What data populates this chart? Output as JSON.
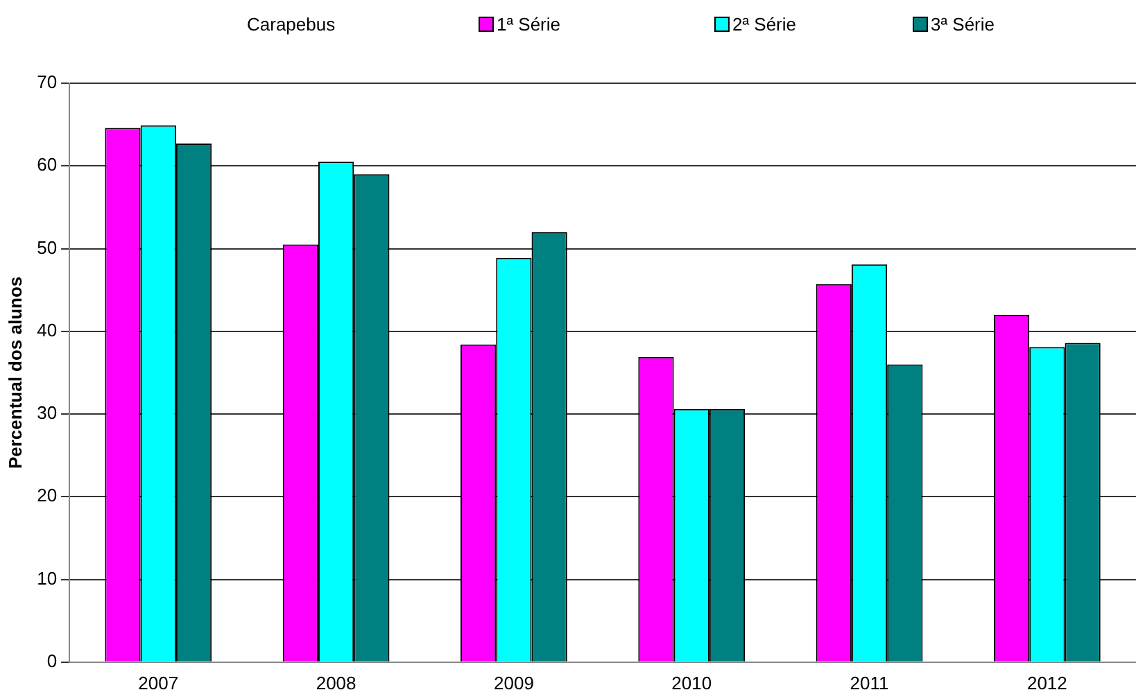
{
  "chart_data": {
    "type": "bar",
    "legend_title": "Carapebus",
    "ylabel": "Percentual dos alunos",
    "categories": [
      "2007",
      "2008",
      "2009",
      "2010",
      "2011",
      "2012"
    ],
    "series": [
      {
        "name": "1ª Série",
        "color": "#ff00ff",
        "values": [
          64.6,
          50.5,
          38.4,
          36.9,
          45.7,
          42.0
        ]
      },
      {
        "name": "2ª Série",
        "color": "#00ffff",
        "values": [
          64.9,
          60.5,
          48.9,
          30.6,
          48.1,
          38.1
        ]
      },
      {
        "name": "3ª Série",
        "color": "#008080",
        "values": [
          62.7,
          59.0,
          52.0,
          30.6,
          36.0,
          38.6
        ]
      }
    ],
    "ylim": [
      0,
      70
    ],
    "yticks": [
      0,
      10,
      20,
      30,
      40,
      50,
      60,
      70
    ],
    "grid": "y",
    "legend": "top"
  }
}
